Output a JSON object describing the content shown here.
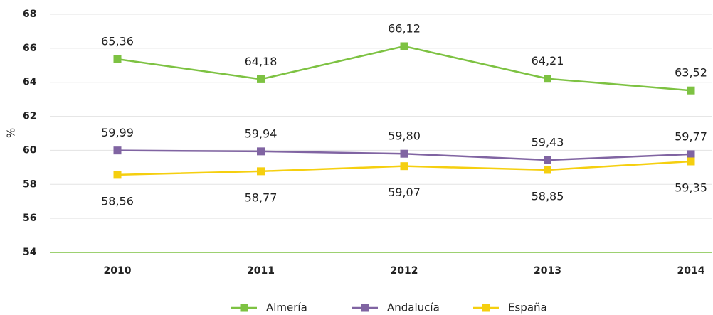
{
  "chart_data": {
    "type": "line",
    "categories": [
      "2010",
      "2011",
      "2012",
      "2013",
      "2014"
    ],
    "y_label": "%",
    "ylim": [
      54,
      68
    ],
    "yticks": [
      54,
      56,
      58,
      60,
      62,
      64,
      66,
      68
    ],
    "grid": true,
    "legend": "bottom",
    "series": [
      {
        "name": "Almería",
        "color": "#7dc242",
        "values": [
          65.36,
          64.18,
          66.12,
          64.21,
          63.52
        ],
        "value_labels": [
          "65,36",
          "64,18",
          "66,12",
          "64,21",
          "63,52"
        ]
      },
      {
        "name": "Andalucía",
        "color": "#8064a2",
        "values": [
          59.99,
          59.94,
          59.8,
          59.43,
          59.77
        ],
        "value_labels": [
          "59,99",
          "59,94",
          "59,80",
          "59,43",
          "59,77"
        ]
      },
      {
        "name": "España",
        "color": "#f5cf0f",
        "values": [
          58.56,
          58.77,
          59.07,
          58.85,
          59.35
        ],
        "value_labels": [
          "58,56",
          "58,77",
          "59,07",
          "58,85",
          "59,35"
        ]
      }
    ]
  }
}
